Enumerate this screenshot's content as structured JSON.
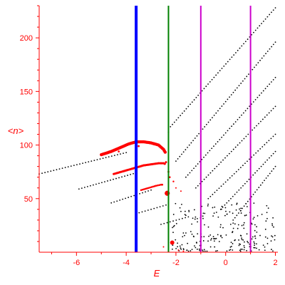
{
  "chart_data": {
    "type": "scatter",
    "title": "",
    "xlabel": "E",
    "ylabel": "<n>",
    "xlim": [
      -7.5,
      2.1
    ],
    "ylim": [
      0,
      230
    ],
    "grid": false,
    "x_ticks": [
      -6,
      -4,
      -2,
      0,
      2
    ],
    "y_ticks": [
      50,
      100,
      150,
      200
    ],
    "colors": {
      "axis": "#ff0000",
      "black_points": "#000000",
      "red_points": "#ff0000",
      "blue_line": "#0000ff",
      "green_line": "#008000",
      "magenta_line": "#cc00cc"
    },
    "vertical_lines": [
      {
        "x": -3.6,
        "color": "#0000ff",
        "weight": "thick"
      },
      {
        "x": -2.3,
        "color": "#008000",
        "weight": "normal"
      },
      {
        "x": -1.0,
        "color": "#cc00cc",
        "weight": "normal"
      },
      {
        "x": 1.0,
        "color": "#cc00cc",
        "weight": "normal"
      }
    ],
    "black_lines": [
      {
        "x_start": -7.5,
        "x_end": -4.0,
        "y_start": 73,
        "y_end": 93
      },
      {
        "x_start": -5.9,
        "x_end": -3.6,
        "y_start": 59,
        "y_end": 74
      },
      {
        "x_start": -4.6,
        "x_end": -3.0,
        "y_start": 46,
        "y_end": 58
      },
      {
        "x_start": -3.6,
        "x_end": -2.4,
        "y_start": 36,
        "y_end": 44
      },
      {
        "x_start": -2.6,
        "x_end": -1.5,
        "y_start": 26,
        "y_end": 33
      },
      {
        "x_start": -2.3,
        "x_end": 2.0,
        "y_start": 115,
        "y_end": 228
      },
      {
        "x_start": -2.0,
        "x_end": 2.0,
        "y_start": 85,
        "y_end": 196
      },
      {
        "x_start": -1.6,
        "x_end": 2.0,
        "y_start": 70,
        "y_end": 163
      },
      {
        "x_start": -1.2,
        "x_end": 2.0,
        "y_start": 60,
        "y_end": 136
      },
      {
        "x_start": -0.7,
        "x_end": 2.0,
        "y_start": 50,
        "y_end": 110
      },
      {
        "x_start": -0.2,
        "x_end": 2.0,
        "y_start": 40,
        "y_end": 94
      },
      {
        "x_start": 0.3,
        "x_end": 2.0,
        "y_start": 30,
        "y_end": 80
      }
    ],
    "red_curves": [
      {
        "x": [
          -5.0,
          -4.6,
          -4.2,
          -3.9,
          -3.6,
          -3.3,
          -3.0,
          -2.7,
          -2.5,
          -2.4
        ],
        "y": [
          91,
          94,
          98,
          101,
          103,
          103,
          102,
          100,
          96,
          92
        ],
        "size": 2.2
      },
      {
        "x": [
          -4.5,
          -4.2,
          -3.9,
          -3.6,
          -3.3,
          -3.0,
          -2.7,
          -2.5,
          -2.4
        ],
        "y": [
          73,
          75,
          77,
          79,
          81,
          82,
          83,
          83,
          82
        ],
        "size": 1.6
      },
      {
        "x": [
          -3.4,
          -3.1,
          -2.8,
          -2.6,
          -2.5
        ],
        "y": [
          58,
          60,
          62,
          63,
          63
        ],
        "size": 1.3
      }
    ],
    "red_scatter": [
      {
        "x": -2.35,
        "y": 55,
        "r": 3.6
      },
      {
        "x": -2.4,
        "y": 84,
        "r": 1.5
      },
      {
        "x": -2.3,
        "y": 75,
        "r": 1.4
      },
      {
        "x": -2.25,
        "y": 70,
        "r": 1.3
      },
      {
        "x": -2.1,
        "y": 66,
        "r": 1.2
      },
      {
        "x": -2.3,
        "y": 112,
        "r": 1.1
      },
      {
        "x": -2.0,
        "y": 60,
        "r": 1.0
      },
      {
        "x": -1.8,
        "y": 57,
        "r": 1.0
      },
      {
        "x": -2.15,
        "y": 9,
        "r": 3.0
      },
      {
        "x": -1.9,
        "y": 2,
        "r": 1.0
      },
      {
        "x": -1.7,
        "y": 1,
        "r": 1.0
      },
      {
        "x": -2.5,
        "y": 5,
        "r": 1.0
      },
      {
        "x": -4.3,
        "y": 94,
        "r": 1.3
      },
      {
        "x": -3.5,
        "y": 99,
        "r": 1.4
      }
    ]
  }
}
